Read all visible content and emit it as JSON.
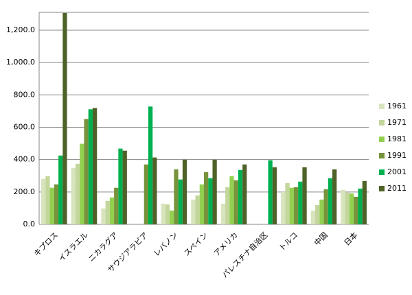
{
  "chart_data": {
    "type": "bar",
    "categories": [
      "キプロス",
      "イスラエル",
      "ニカラグア",
      "サウジアラビア",
      "レバノン",
      "スペイン",
      "アメリカ",
      "パレスチナ自治区",
      "トルコ",
      "中国",
      "日本"
    ],
    "series": [
      {
        "name": "1961",
        "color": "#d7e4bd",
        "values": [
          281,
          349,
          98,
          null,
          128,
          153,
          128,
          null,
          200,
          85,
          213
        ]
      },
      {
        "name": "1971",
        "color": "#c3d69b",
        "values": [
          298,
          374,
          145,
          null,
          123,
          179,
          230,
          null,
          255,
          119,
          196
        ]
      },
      {
        "name": "1981",
        "color": "#92d050",
        "values": [
          226,
          498,
          166,
          null,
          85,
          247,
          298,
          null,
          226,
          153,
          191
        ]
      },
      {
        "name": "1991",
        "color": "#77933c",
        "values": [
          247,
          651,
          226,
          370,
          340,
          323,
          272,
          null,
          230,
          217,
          170
        ]
      },
      {
        "name": "2001",
        "color": "#00b050",
        "values": [
          425,
          711,
          468,
          728,
          277,
          285,
          336,
          396,
          264,
          285,
          221
        ]
      },
      {
        "name": "2011",
        "color": "#4f6228",
        "values": [
          1306,
          719,
          455,
          413,
          400,
          400,
          370,
          353,
          353,
          340,
          268
        ]
      }
    ],
    "ylim": [
      0,
      1310
    ],
    "yticks": [
      {
        "value": 0,
        "label": "0.0"
      },
      {
        "value": 200,
        "label": "200.0"
      },
      {
        "value": 400,
        "label": "400.0"
      },
      {
        "value": 600,
        "label": "600.0"
      },
      {
        "value": 800,
        "label": "800.0"
      },
      {
        "value": 1000,
        "label": "1,000.0"
      },
      {
        "value": 1200,
        "label": "1,200.0"
      }
    ],
    "grid": true,
    "legend": "right"
  }
}
